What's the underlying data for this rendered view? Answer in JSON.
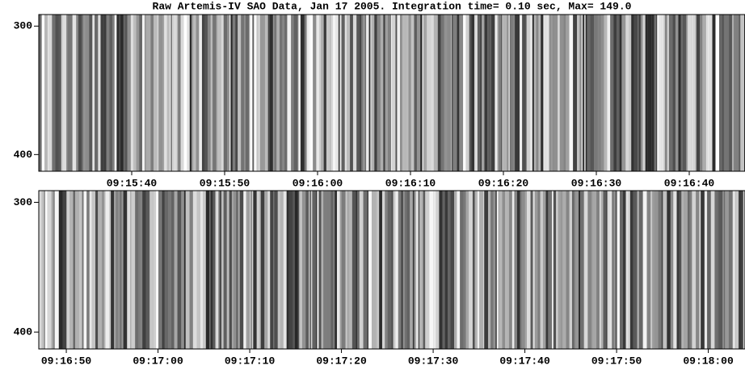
{
  "chart_data": [
    {
      "type": "image",
      "title": "Raw  Artemis-IV  SAO Data, Jan 17 2005. Integration time= 0.10 sec, Max= 149.0",
      "ylim": [
        413,
        291
      ],
      "yticks": [
        300,
        400
      ],
      "xlim": [
        33330,
        33406
      ],
      "xticks": [
        {
          "value": 33340,
          "label": "09:15:40"
        },
        {
          "value": 33350,
          "label": "09:15:50"
        },
        {
          "value": 33360,
          "label": "09:16:00"
        },
        {
          "value": 33370,
          "label": "09:16:10"
        },
        {
          "value": 33380,
          "label": "09:16:20"
        },
        {
          "value": 33390,
          "label": "09:16:30"
        },
        {
          "value": 33400,
          "label": "09:16:40"
        }
      ]
    },
    {
      "type": "image",
      "ylim": [
        413,
        291
      ],
      "yticks": [
        300,
        400
      ],
      "xlim": [
        33407,
        33484
      ],
      "xticks": [
        {
          "value": 33410,
          "label": "09:16:50"
        },
        {
          "value": 33420,
          "label": "09:17:00"
        },
        {
          "value": 33430,
          "label": "09:17:10"
        },
        {
          "value": 33440,
          "label": "09:17:20"
        },
        {
          "value": 33450,
          "label": "09:17:30"
        },
        {
          "value": 33460,
          "label": "09:17:40"
        },
        {
          "value": 33470,
          "label": "09:17:50"
        },
        {
          "value": 33480,
          "label": "09:18:00"
        }
      ]
    }
  ]
}
